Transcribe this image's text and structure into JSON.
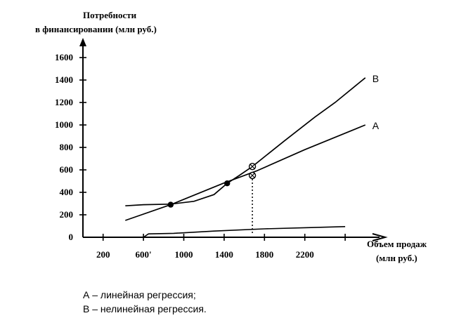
{
  "chart_data": {
    "type": "line",
    "ylabel": [
      "Потребности",
      "в финансировании (млн руб.)"
    ],
    "xlabel": [
      "Объем продаж",
      "(млн руб.)"
    ],
    "xlim": [
      0,
      2800
    ],
    "ylim": [
      0,
      1750
    ],
    "y_ticks": [
      0,
      200,
      400,
      600,
      800,
      1000,
      1200,
      1400,
      1600
    ],
    "x_tick_marks": [
      200,
      600,
      1000,
      1400,
      1800,
      2200,
      2600
    ],
    "x_tick_labels": [
      {
        "value": 200,
        "label": "200"
      },
      {
        "value": 600,
        "label": "600'"
      },
      {
        "value": 1000,
        "label": "1000"
      },
      {
        "value": 1400,
        "label": "1400"
      },
      {
        "value": 1800,
        "label": "1800"
      },
      {
        "value": 2200,
        "label": "2200"
      }
    ],
    "series": [
      {
        "name": "A",
        "points": [
          [
            420,
            150
          ],
          [
            870,
            290
          ],
          [
            1390,
            480
          ],
          [
            1720,
            590
          ],
          [
            2200,
            780
          ],
          [
            2800,
            1000
          ]
        ]
      },
      {
        "name": "B",
        "points": [
          [
            420,
            280
          ],
          [
            600,
            290
          ],
          [
            870,
            295
          ],
          [
            1100,
            320
          ],
          [
            1300,
            380
          ],
          [
            1430,
            480
          ],
          [
            1550,
            550
          ],
          [
            1680,
            630
          ],
          [
            2000,
            860
          ],
          [
            2300,
            1070
          ],
          [
            2500,
            1200
          ],
          [
            2800,
            1420
          ]
        ]
      }
    ],
    "baseline_curve": [
      [
        600,
        0
      ],
      [
        650,
        30
      ],
      [
        900,
        35
      ],
      [
        1300,
        55
      ],
      [
        1800,
        75
      ],
      [
        2200,
        85
      ],
      [
        2600,
        95
      ]
    ],
    "solid_points": [
      [
        870,
        290
      ],
      [
        1430,
        480
      ]
    ],
    "crossed_points": [
      [
        1680,
        630
      ],
      [
        1680,
        550
      ]
    ],
    "dotted_drop": [
      1680,
      550
    ],
    "legend": [
      "А – линейная регрессия;",
      "В – нелинейная регрессия."
    ]
  }
}
